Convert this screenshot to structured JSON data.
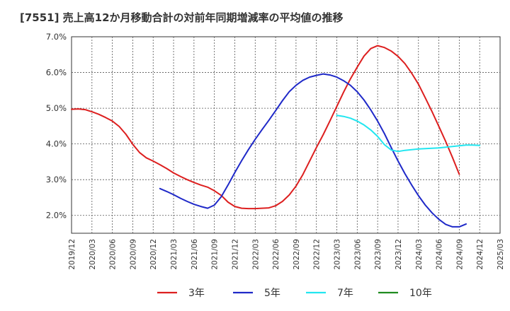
{
  "chart_data": {
    "type": "line",
    "title": "[7551]  売上高12か月移動合計の対前年同期増減率の平均値の推移",
    "xlabel": "",
    "ylabel": "",
    "x_tick_labels": [
      "2019/12",
      "2020/03",
      "2020/06",
      "2020/09",
      "2020/12",
      "2021/03",
      "2021/06",
      "2021/09",
      "2021/12",
      "2022/03",
      "2022/06",
      "2022/09",
      "2022/12",
      "2023/03",
      "2023/06",
      "2023/09",
      "2023/12",
      "2024/03",
      "2024/06",
      "2024/09",
      "2024/12",
      "2025/03"
    ],
    "y_tick_labels": [
      "2.0%",
      "3.0%",
      "4.0%",
      "5.0%",
      "6.0%",
      "7.0%"
    ],
    "ylim": [
      1.5,
      7.0
    ],
    "y_unit": "%",
    "grid": true,
    "legend_position": "bottom",
    "series": [
      {
        "name": "3年",
        "color": "#dd1f1f",
        "x": [
          "2019/12",
          "2020/01",
          "2020/02",
          "2020/03",
          "2020/04",
          "2020/05",
          "2020/06",
          "2020/07",
          "2020/08",
          "2020/09",
          "2020/10",
          "2020/11",
          "2020/12",
          "2021/01",
          "2021/02",
          "2021/03",
          "2021/04",
          "2021/05",
          "2021/06",
          "2021/07",
          "2021/08",
          "2021/09",
          "2021/10",
          "2021/11",
          "2021/12",
          "2022/01",
          "2022/02",
          "2022/03",
          "2022/04",
          "2022/05",
          "2022/06",
          "2022/07",
          "2022/08",
          "2022/09",
          "2022/10",
          "2022/11",
          "2022/12",
          "2023/01",
          "2023/02",
          "2023/03",
          "2023/04",
          "2023/05",
          "2023/06",
          "2023/07",
          "2023/08",
          "2023/09",
          "2023/10",
          "2023/11",
          "2023/12",
          "2024/01",
          "2024/02",
          "2024/03",
          "2024/04",
          "2024/05",
          "2024/06",
          "2024/07",
          "2024/08",
          "2024/09",
          "2024/10",
          "2024/11",
          "2024/12"
        ],
        "values": [
          4.97,
          4.98,
          4.96,
          4.9,
          4.83,
          4.74,
          4.64,
          4.49,
          4.27,
          3.99,
          3.76,
          3.61,
          3.52,
          3.42,
          3.31,
          3.19,
          3.09,
          3.0,
          2.92,
          2.85,
          2.79,
          2.69,
          2.56,
          2.37,
          2.25,
          2.2,
          2.19,
          2.19,
          2.2,
          2.21,
          2.27,
          2.39,
          2.57,
          2.82,
          3.14,
          3.52,
          3.9,
          4.26,
          4.65,
          5.05,
          5.45,
          5.82,
          6.15,
          6.46,
          6.67,
          6.75,
          6.7,
          6.6,
          6.45,
          6.25,
          5.98,
          5.67,
          5.29,
          4.9,
          4.49,
          4.07,
          3.62,
          3.15,
          null,
          null,
          null
        ]
      },
      {
        "name": "5年",
        "color": "#1f29c8",
        "x": [
          "2021/01",
          "2021/02",
          "2021/03",
          "2021/04",
          "2021/05",
          "2021/06",
          "2021/07",
          "2021/08",
          "2021/09",
          "2021/10",
          "2021/11",
          "2021/12",
          "2022/01",
          "2022/02",
          "2022/03",
          "2022/04",
          "2022/05",
          "2022/06",
          "2022/07",
          "2022/08",
          "2022/09",
          "2022/10",
          "2022/11",
          "2022/12",
          "2023/01",
          "2023/02",
          "2023/03",
          "2023/04",
          "2023/05",
          "2023/06",
          "2023/07",
          "2023/08",
          "2023/09",
          "2023/10",
          "2023/11",
          "2023/12",
          "2024/01",
          "2024/02",
          "2024/03",
          "2024/04",
          "2024/05",
          "2024/06",
          "2024/07",
          "2024/08",
          "2024/09",
          "2024/10",
          "2024/11",
          "2024/12"
        ],
        "values": [
          2.75,
          2.67,
          2.58,
          2.48,
          2.39,
          2.31,
          2.25,
          2.2,
          2.29,
          2.52,
          2.85,
          3.2,
          3.53,
          3.84,
          4.13,
          4.4,
          4.66,
          4.93,
          5.21,
          5.46,
          5.64,
          5.78,
          5.87,
          5.92,
          5.96,
          5.93,
          5.87,
          5.77,
          5.64,
          5.46,
          5.23,
          4.95,
          4.64,
          4.29,
          3.9,
          3.52,
          3.17,
          2.85,
          2.55,
          2.29,
          2.07,
          1.89,
          1.75,
          1.68,
          1.68,
          1.76,
          null,
          null
        ]
      },
      {
        "name": "7年",
        "color": "#22e6f0",
        "x": [
          "2023/03",
          "2023/04",
          "2023/05",
          "2023/06",
          "2023/07",
          "2023/08",
          "2023/09",
          "2023/10",
          "2023/11",
          "2023/12",
          "2024/01",
          "2024/02",
          "2024/03",
          "2024/04",
          "2024/05",
          "2024/06",
          "2024/07",
          "2024/08",
          "2024/09",
          "2024/10",
          "2024/11",
          "2024/12"
        ],
        "values": [
          4.8,
          4.77,
          4.72,
          4.64,
          4.53,
          4.39,
          4.21,
          3.98,
          3.83,
          3.79,
          3.82,
          3.84,
          3.86,
          3.87,
          3.88,
          3.89,
          3.91,
          3.93,
          3.95,
          3.97,
          3.97,
          3.96
        ]
      },
      {
        "name": "10年",
        "color": "#1f8b1f",
        "x": [],
        "values": []
      }
    ]
  }
}
